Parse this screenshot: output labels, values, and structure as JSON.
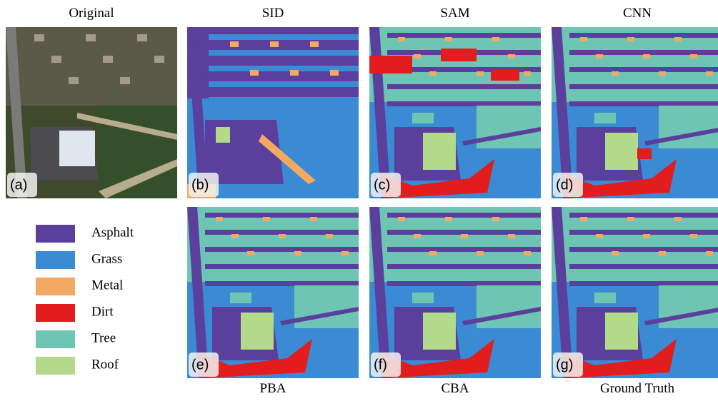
{
  "panels": [
    {
      "title": "Original",
      "label": "(a)"
    },
    {
      "title": "SID",
      "label": "(b)"
    },
    {
      "title": "SAM",
      "label": "(c)"
    },
    {
      "title": "CNN",
      "label": "(d)"
    },
    {
      "title": "PBA",
      "label": "(e)"
    },
    {
      "title": "CBA",
      "label": "(f)"
    },
    {
      "title": "Ground Truth",
      "label": "(g)"
    }
  ],
  "legend": [
    {
      "name": "Asphalt",
      "color": "#5a3f9c"
    },
    {
      "name": "Grass",
      "color": "#3a8bd4"
    },
    {
      "name": "Metal",
      "color": "#f4a962"
    },
    {
      "name": "Dirt",
      "color": "#e31d1d"
    },
    {
      "name": "Tree",
      "color": "#6fc5b4"
    },
    {
      "name": "Roof",
      "color": "#b3d98a"
    }
  ]
}
